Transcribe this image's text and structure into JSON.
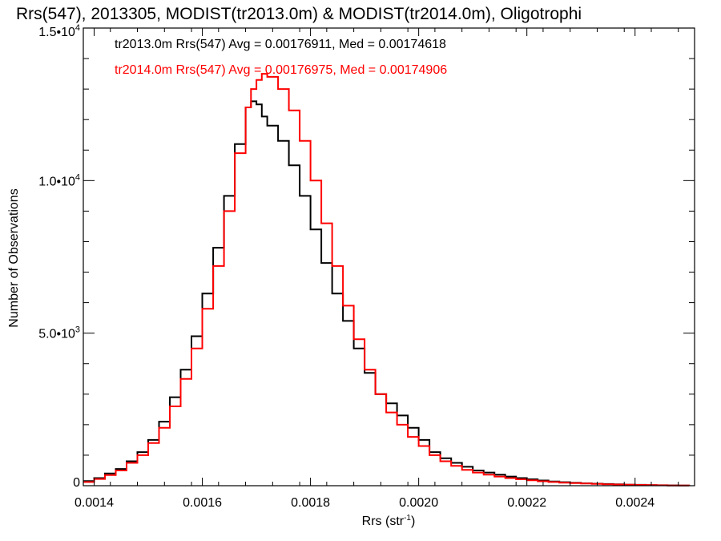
{
  "chart_data": {
    "type": "line",
    "title": "Rrs(547), 2013305, MODIST(tr2013.0m) & MODIST(tr2014.0m), Oligotrophi",
    "xlabel": "Rrs (str",
    "xlabel_exp": "-1",
    "xlabel_close": ")",
    "ylabel": "Number of Observations",
    "xlim": [
      0.00138,
      0.00251
    ],
    "ylim": [
      0,
      15000
    ],
    "x_ticks": [
      {
        "value": 0.0014,
        "label": "0.0014"
      },
      {
        "value": 0.0016,
        "label": "0.0016"
      },
      {
        "value": 0.0018,
        "label": "0.0018"
      },
      {
        "value": 0.002,
        "label": "0.0020"
      },
      {
        "value": 0.0022,
        "label": "0.0022"
      },
      {
        "value": 0.0024,
        "label": "0.0024"
      }
    ],
    "y_ticks": [
      {
        "value": 0,
        "mantissa": "0",
        "exp": ""
      },
      {
        "value": 5000,
        "mantissa": "5.0•10",
        "exp": "3"
      },
      {
        "value": 10000,
        "mantissa": "1.0•10",
        "exp": "4"
      },
      {
        "value": 15000,
        "mantissa": "1.5•10",
        "exp": "4"
      }
    ],
    "grid": false,
    "legend_position": "top-left",
    "series": [
      {
        "name": "tr2013.0m Rrs(547)",
        "annotation": "tr2013.0m Rrs(547) Avg = 0.00176911, Med = 0.00174618",
        "color": "#000000",
        "step": true,
        "x": [
          0.00138,
          0.0014,
          0.00142,
          0.00144,
          0.00146,
          0.00148,
          0.0015,
          0.00152,
          0.00154,
          0.00156,
          0.00158,
          0.0016,
          0.00162,
          0.00164,
          0.00166,
          0.00168,
          0.00169,
          0.0017,
          0.00171,
          0.00172,
          0.00174,
          0.00176,
          0.00178,
          0.0018,
          0.00182,
          0.00184,
          0.00186,
          0.00188,
          0.0019,
          0.00192,
          0.00194,
          0.00196,
          0.00198,
          0.002,
          0.00202,
          0.00204,
          0.00206,
          0.00208,
          0.0021,
          0.00212,
          0.00214,
          0.00216,
          0.00218,
          0.0022,
          0.00222,
          0.00224,
          0.00226,
          0.00228,
          0.0023,
          0.00232,
          0.00234,
          0.00236,
          0.00238,
          0.0024,
          0.00242,
          0.00244,
          0.00246,
          0.00248,
          0.0025
        ],
        "y": [
          150,
          250,
          400,
          550,
          800,
          1100,
          1500,
          2100,
          2900,
          3800,
          4900,
          6300,
          7800,
          9500,
          11200,
          12400,
          12600,
          12500,
          12100,
          11800,
          11300,
          10500,
          9500,
          8400,
          7300,
          6300,
          5400,
          4500,
          3700,
          3000,
          2700,
          2300,
          1900,
          1500,
          1100,
          900,
          750,
          620,
          500,
          430,
          360,
          300,
          250,
          210,
          170,
          140,
          115,
          95,
          80,
          65,
          55,
          45,
          35,
          28,
          20,
          15,
          10,
          5,
          0
        ]
      },
      {
        "name": "tr2014.0m Rrs(547)",
        "annotation": "tr2014.0m Rrs(547) Avg = 0.00176975, Med = 0.00174906",
        "color": "#ff0000",
        "step": true,
        "x": [
          0.00138,
          0.0014,
          0.00142,
          0.00144,
          0.00146,
          0.00148,
          0.0015,
          0.00152,
          0.00154,
          0.00156,
          0.00158,
          0.0016,
          0.00162,
          0.00164,
          0.00166,
          0.00168,
          0.00169,
          0.0017,
          0.00171,
          0.00172,
          0.00174,
          0.00176,
          0.00178,
          0.0018,
          0.00182,
          0.00184,
          0.00186,
          0.00188,
          0.0019,
          0.00192,
          0.00194,
          0.00196,
          0.00198,
          0.002,
          0.00202,
          0.00204,
          0.00206,
          0.00208,
          0.0021,
          0.00212,
          0.00214,
          0.00216,
          0.00218,
          0.0022,
          0.00222,
          0.00224,
          0.00226,
          0.00228,
          0.0023,
          0.00232,
          0.00234,
          0.00236,
          0.00238,
          0.0024,
          0.00242,
          0.00244,
          0.00246,
          0.00248,
          0.0025
        ],
        "y": [
          120,
          220,
          350,
          500,
          750,
          1000,
          1400,
          1900,
          2600,
          3500,
          4500,
          5800,
          7200,
          9000,
          10900,
          12400,
          13000,
          13300,
          13500,
          13400,
          13000,
          12300,
          11300,
          10000,
          8600,
          7200,
          5900,
          4800,
          3800,
          3000,
          2400,
          2000,
          1600,
          1300,
          1000,
          800,
          650,
          520,
          430,
          360,
          300,
          250,
          210,
          175,
          145,
          120,
          100,
          85,
          70,
          58,
          48,
          40,
          32,
          25,
          18,
          12,
          8,
          4,
          0
        ]
      }
    ]
  }
}
